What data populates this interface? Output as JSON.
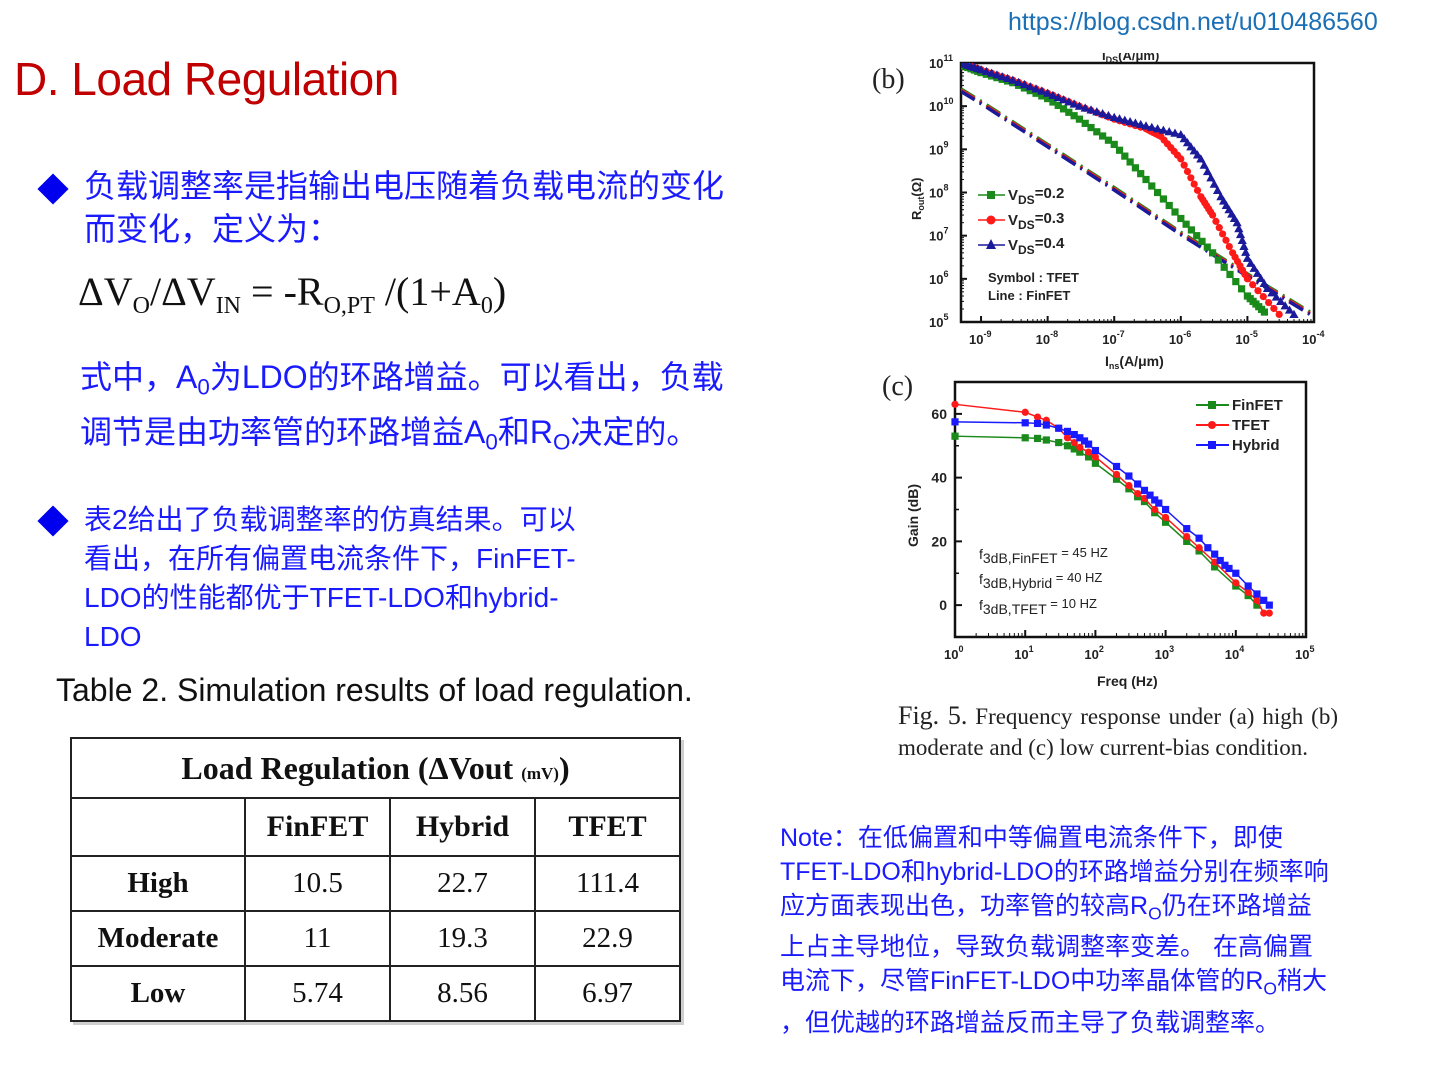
{
  "watermark": "https://blog.csdn.net/u010486560",
  "slide": {
    "title": "D. Load Regulation",
    "bullet1": {
      "line1": "负载调整率是指输出电压随着负载电流的变化",
      "line2": "而变化，定义为："
    },
    "formula": {
      "lhs_delta_vo": "ΔV",
      "lhs_vo_sub": "O",
      "slash": "/ΔV",
      "lhs_vin_sub": "IN",
      "eq": " = -R",
      "r_sub": "O,PT",
      "rhs": " /(1+A",
      "a_sub": "0",
      "close": ")"
    },
    "explanation": {
      "l1_a": "式中，",
      "l1_A": "A",
      "l1_A_sub": "0",
      "l1_b": "为",
      "l1_LDO": "LDO",
      "l1_c": "的环路增益。可以看出，负载",
      "l2_a": "调节是由功率管的环路增益",
      "l2_A": "A",
      "l2_A_sub": "0",
      "l2_b": "和",
      "l2_R": "R",
      "l2_R_sub": "O",
      "l2_c": "决定的。"
    },
    "bullet2": {
      "line1_a": "表",
      "line1_num": "2",
      "line1_b": "给出了负载调整率的仿真结果。可以",
      "line2_a": "看出，在所有偏置电流条件下，",
      "line2_b": "FinFET-",
      "line3_a": "LDO",
      "line3_b": "的性能都优于",
      "line3_c": "TFET-LDO",
      "line3_d": "和",
      "line3_e": "hybrid-",
      "line4": "LDO"
    },
    "table_caption": "Table 2. Simulation results of load regulation.",
    "table": {
      "title": "Load Regulation (ΔVout ",
      "title_unit": "(mV)",
      "title_close": ")",
      "columns": [
        "",
        "FinFET",
        "Hybrid",
        "TFET"
      ],
      "rows": [
        {
          "label": "High",
          "values": [
            "10.5",
            "22.7",
            "111.4"
          ]
        },
        {
          "label": "Moderate",
          "values": [
            "11",
            "19.3",
            "22.9"
          ]
        },
        {
          "label": "Low",
          "values": [
            "5.74",
            "8.56",
            "6.97"
          ]
        }
      ]
    },
    "note": {
      "l1_a": "Note",
      "l1_b": "：在低偏置和中等偏置电流条件下，即使",
      "l2_a": "TFET-LDO",
      "l2_b": "和",
      "l2_c": "hybrid-LDO",
      "l2_d": "的环路增益分别在频率响",
      "l3_a": "应方面表现出色，功率管的较高",
      "l3_R": "R",
      "l3_R_sub": "O",
      "l3_b": "仍在环路增益",
      "l4": "上占主导地位，导致负载调整率变差。 在高偏置",
      "l5_a": "电流下，尽管",
      "l5_b": "FinFET-LDO",
      "l5_c": "中功率晶体管的",
      "l5_R": "R",
      "l5_R_sub": "O",
      "l5_d": "稍大",
      "l6": "，但优越的环路增益反而主导了负载调整率。"
    },
    "figure_caption": {
      "fig": "Fig. 5.",
      "text": " Frequency response under (a) high (b) moderate and (c) low current-bias condition."
    },
    "colors": {
      "title": "#c00000",
      "body_text": "#1a1aff",
      "bullet": "#0000ee",
      "watermark": "#1a6fb5",
      "finfet": "#1a8a1a",
      "tfet": "#ff1a1a",
      "hybrid": "#1a1aff",
      "vds04": "#1a1a9a"
    }
  },
  "chart_data": [
    {
      "panel": "(b)",
      "type": "line",
      "title": "",
      "top_label_cropped": "I_DS(A/μm)",
      "xlabel": "I_DS(A/μm)",
      "ylabel": "R_out(Ω)",
      "xscale": "log",
      "yscale": "log",
      "xlim": [
        5e-10,
        0.0001
      ],
      "ylim": [
        100000.0,
        100000000000.0
      ],
      "x_ticks": [
        "10^-9",
        "10^-8",
        "10^-7",
        "10^-6",
        "10^-5",
        "10^-4"
      ],
      "y_ticks": [
        "10^5",
        "10^6",
        "10^7",
        "10^8",
        "10^9",
        "10^10",
        "10^11"
      ],
      "legend": [
        "VDS=0.2",
        "VDS=0.3",
        "VDS=0.4"
      ],
      "annotations": [
        "Symbol : TFET",
        "Line : FinFET"
      ],
      "grid": false,
      "series": [
        {
          "name": "VDS=0.2 (TFET)",
          "marker": "square",
          "color": "#1a8a1a",
          "x": [
            5e-10,
            1e-09,
            3e-09,
            1e-08,
            3e-08,
            1e-07,
            3e-07,
            1e-06,
            3e-06,
            1e-05,
            1.8e-05
          ],
          "y": [
            90000000000.0,
            60000000000.0,
            35000000000.0,
            15000000000.0,
            5000000000.0,
            1300000000.0,
            200000000.0,
            25000000.0,
            4000000.0,
            400000.0,
            170000.0
          ]
        },
        {
          "name": "VDS=0.3 (TFET)",
          "marker": "circle",
          "color": "#ff1a1a",
          "x": [
            5e-10,
            1e-09,
            3e-09,
            1e-08,
            3e-08,
            1e-07,
            3e-07,
            5e-07,
            1e-06,
            2e-06,
            3e-06,
            6e-06,
            1e-05,
            3e-05
          ],
          "y": [
            100000000000.0,
            70000000000.0,
            40000000000.0,
            20000000000.0,
            10000000000.0,
            5000000000.0,
            3000000000.0,
            2000000000.0,
            600000000.0,
            80000000.0,
            30000000.0,
            4000000.0,
            1000000.0,
            150000.0
          ]
        },
        {
          "name": "VDS=0.4 (TFET)",
          "marker": "triangle",
          "color": "#1a1a9a",
          "x": [
            5e-10,
            1e-09,
            3e-09,
            1e-08,
            3e-08,
            1e-07,
            3e-07,
            1e-06,
            2e-06,
            4e-06,
            7e-06,
            1e-05,
            2e-05,
            5e-05
          ],
          "y": [
            100000000000.0,
            70000000000.0,
            40000000000.0,
            20000000000.0,
            10000000000.0,
            5500000000.0,
            3500000000.0,
            2200000000.0,
            600000000.0,
            80000000.0,
            20000000.0,
            3000000.0,
            600000.0,
            150000.0
          ]
        },
        {
          "name": "FinFET (all VDS, lines)",
          "marker": "none",
          "color": "#1a1a9a",
          "x": [
            5e-10,
            1e-09,
            1e-08,
            1e-07,
            1e-06,
            1e-05,
            0.0001
          ],
          "y": [
            25000000000.0,
            13000000000.0,
            1300000000.0,
            130000000.0,
            12000000.0,
            1300000.0,
            150000.0
          ]
        }
      ]
    },
    {
      "panel": "(c)",
      "type": "line",
      "title": "",
      "xlabel": "Freq (Hz)",
      "ylabel": "Gain (dB)",
      "xscale": "log",
      "xlim": [
        1,
        100000.0
      ],
      "ylim": [
        -10,
        70
      ],
      "x_ticks": [
        "10^0",
        "10^1",
        "10^2",
        "10^3",
        "10^4",
        "10^5"
      ],
      "y_ticks": [
        0,
        20,
        40,
        60
      ],
      "legend": [
        "FinFET",
        "TFET",
        "Hybrid"
      ],
      "legend_position": "upper right",
      "annotations": [
        "f3dB,FinFET = 45 HZ",
        "f3dB,Hybrid = 40 HZ",
        "f3dB,TFET = 10 HZ"
      ],
      "grid": false,
      "series": [
        {
          "name": "FinFET",
          "marker": "square",
          "color": "#1a8a1a",
          "x": [
            1,
            10,
            15,
            20,
            30,
            40,
            50,
            60,
            80,
            100,
            200,
            300,
            400,
            500,
            700,
            1000,
            2000,
            3000,
            5000,
            10000,
            15000,
            20000
          ],
          "y": [
            53,
            52.5,
            52.3,
            51.8,
            51,
            50,
            49,
            48,
            46.5,
            44.5,
            39.5,
            36.5,
            34,
            32.5,
            29,
            26,
            20,
            17,
            12,
            6,
            3,
            0
          ]
        },
        {
          "name": "TFET",
          "marker": "circle",
          "color": "#ff1a1a",
          "x": [
            1,
            10,
            15,
            20,
            30,
            40,
            50,
            60,
            80,
            100,
            200,
            300,
            400,
            500,
            700,
            1000,
            2000,
            3000,
            5000,
            10000,
            15000,
            20000,
            25000,
            30000
          ],
          "y": [
            63,
            60.5,
            59,
            58,
            55.5,
            52.5,
            51,
            49.5,
            48,
            46.5,
            41,
            37.5,
            35,
            33.5,
            30,
            27.5,
            21.5,
            18,
            13.5,
            7,
            4,
            1.5,
            -2.5,
            -2.5
          ]
        },
        {
          "name": "Hybrid",
          "marker": "square",
          "color": "#1a1aff",
          "x": [
            1,
            10,
            15,
            20,
            30,
            40,
            50,
            60,
            70,
            80,
            100,
            200,
            300,
            400,
            500,
            600,
            700,
            800,
            1000,
            2000,
            3000,
            4000,
            5000,
            6000,
            7000,
            8000,
            10000,
            15000,
            20000,
            25000,
            30000
          ],
          "y": [
            57.5,
            57.2,
            57,
            56.5,
            55.5,
            54.5,
            53.5,
            52.5,
            51.5,
            50.5,
            48.5,
            43.5,
            40.5,
            38,
            36,
            34.5,
            33,
            32,
            30,
            24,
            21,
            18,
            16,
            14,
            12.5,
            11.5,
            10,
            6,
            3.5,
            1.5,
            0
          ]
        }
      ]
    }
  ],
  "panels": {
    "b": {
      "label": "(b)",
      "top_cropped_label": "I",
      "top_cropped_sub": "DS",
      "top_cropped_rest": "(A/μm)",
      "ylabel_main": "R",
      "ylabel_sub": "out",
      "ylabel_rest": "(Ω)",
      "xlabel_main": "I",
      "xlabel_sub": "ns",
      "xlabel_rest": "(A/μm)",
      "y_ticks": [
        "11",
        "10",
        "9",
        "8",
        "7",
        "6",
        "5"
      ],
      "x_ticks": [
        "-9",
        "-8",
        "-7",
        "-6",
        "-5",
        "-4"
      ],
      "tick_base": "10",
      "legend": [
        {
          "main": "V",
          "sub": "DS",
          "rest": "=0.2"
        },
        {
          "main": "V",
          "sub": "DS",
          "rest": "=0.3"
        },
        {
          "main": "V",
          "sub": "DS",
          "rest": "=0.4"
        }
      ],
      "note1": "Symbol : TFET",
      "note2": "Line : FinFET"
    },
    "c": {
      "label": "(c)",
      "ylabel": "Gain (dB)",
      "xlabel": "Freq (Hz)",
      "y_ticks": [
        "60",
        "40",
        "20",
        "0"
      ],
      "x_ticks": [
        "0",
        "1",
        "2",
        "3",
        "4",
        "5"
      ],
      "tick_base": "10",
      "legend": [
        "FinFET",
        "TFET",
        "Hybrid"
      ],
      "f3db": [
        {
          "sub": "3dB,FinFET",
          "rest": " = 45 HZ"
        },
        {
          "sub": "3dB,Hybrid",
          "rest": " = 40 HZ"
        },
        {
          "sub": "3dB,TFET",
          "rest": " = 10 HZ"
        }
      ],
      "f": "f"
    }
  }
}
